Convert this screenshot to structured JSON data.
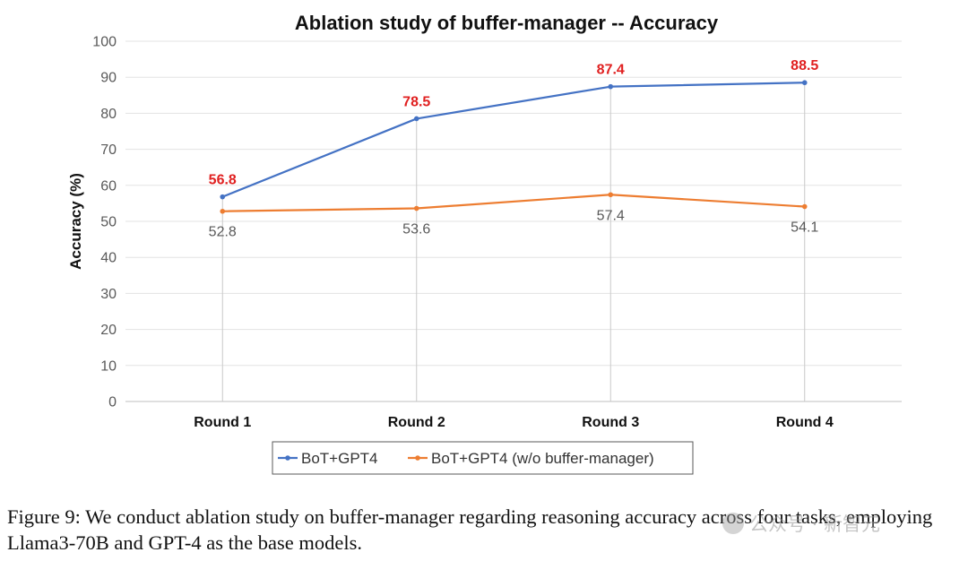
{
  "chart_data": {
    "type": "line",
    "title": "Ablation study of buffer-manager -- Accuracy",
    "ylabel": "Accuracy (%)",
    "xlabel": "",
    "categories": [
      "Round 1",
      "Round 2",
      "Round 3",
      "Round 4"
    ],
    "ylim": [
      0,
      100
    ],
    "yticks": [
      0,
      10,
      20,
      30,
      40,
      50,
      60,
      70,
      80,
      90,
      100
    ],
    "grid": "horizontal",
    "legend_position": "bottom",
    "series": [
      {
        "name": "BoT+GPT4",
        "values": [
          56.8,
          78.5,
          87.4,
          88.5
        ],
        "color": "#4472c4",
        "label_color": "#e02020",
        "label_position": "above"
      },
      {
        "name": "BoT+GPT4 (w/o buffer-manager)",
        "values": [
          52.8,
          53.6,
          57.4,
          54.1
        ],
        "color": "#ed7d31",
        "label_color": "#595959",
        "label_position": "below"
      }
    ]
  },
  "caption": {
    "text": "Figure 9: We conduct ablation study on buffer-manager regarding reasoning accuracy across four tasks, employing Llama3-70B and GPT-4 as the base models."
  },
  "watermark": {
    "text": "公众号 · 新智元"
  }
}
